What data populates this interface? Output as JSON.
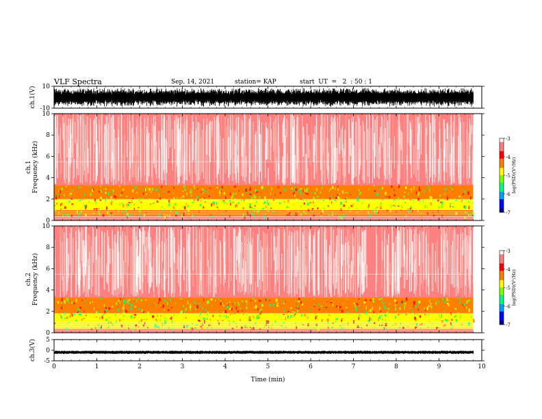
{
  "header": {
    "title": "VLF Spectra",
    "date": "Sep. 14, 2021",
    "station": "station= KAP",
    "start": "start  UT  =   2  : 50 : 1"
  },
  "chart_data": [
    {
      "type": "line",
      "panel": "ch1-waveform",
      "ylabel": "ch.1(V)",
      "ylim": [
        -10,
        10
      ],
      "yticks": [
        10,
        -10
      ],
      "xlim": [
        0,
        10
      ],
      "data_extent_min": 9.8,
      "description": "dense signal mostly spanning -8 to 8 V"
    },
    {
      "type": "heatmap",
      "panel": "ch1-spectrogram",
      "ylabel": "ch.1\nFrequency (kHz)",
      "ylim": [
        0,
        10
      ],
      "yticks": [
        0,
        2,
        4,
        6,
        8,
        10
      ],
      "xlim": [
        0,
        10
      ],
      "data_extent_min": 9.8,
      "bands": [
        {
          "f_min": 0.0,
          "f_max": 0.4,
          "level": -3.5
        },
        {
          "f_min": 0.4,
          "f_max": 1.0,
          "level": -4.2
        },
        {
          "f_min": 1.0,
          "f_max": 2.0,
          "level": -4.7
        },
        {
          "f_min": 2.0,
          "f_max": 3.3,
          "level": -4.4
        },
        {
          "f_min": 3.3,
          "f_max": 10.0,
          "level": -3.6
        }
      ],
      "colorbar": {
        "label": "log(PSD)(V²/Hz)",
        "range": [
          -7,
          -3
        ],
        "ticks": [
          -3,
          -4,
          -5,
          -6,
          -7
        ]
      }
    },
    {
      "type": "heatmap",
      "panel": "ch2-spectrogram",
      "ylabel": "ch.2\nFrequency (kHz)",
      "ylim": [
        0,
        10
      ],
      "yticks": [
        0,
        2,
        4,
        6,
        8,
        10
      ],
      "xlim": [
        0,
        10
      ],
      "data_extent_min": 9.8,
      "bands": [
        {
          "f_min": 0.0,
          "f_max": 0.4,
          "level": -3.5
        },
        {
          "f_min": 0.4,
          "f_max": 1.8,
          "level": -4.9
        },
        {
          "f_min": 1.8,
          "f_max": 3.3,
          "level": -4.3
        },
        {
          "f_min": 3.3,
          "f_max": 10.0,
          "level": -3.6
        }
      ],
      "colorbar": {
        "label": "log(PSD)(V²/Hz)",
        "range": [
          -7,
          -3
        ],
        "ticks": [
          -3,
          -4,
          -5,
          -6,
          -7
        ]
      }
    },
    {
      "type": "line",
      "panel": "ch3-waveform",
      "ylabel": "ch.3(V)",
      "ylim": [
        -5,
        5
      ],
      "yticks": [
        5,
        0,
        -5
      ],
      "xlim": [
        0,
        10
      ],
      "data_extent_min": 9.8,
      "description": "narrow band around -1 V"
    }
  ],
  "xaxis": {
    "label": "Time (min)",
    "ticks": [
      0,
      1,
      2,
      3,
      4,
      5,
      6,
      7,
      8,
      9,
      10
    ]
  },
  "colors": {
    "scale": [
      "#000080",
      "#0000ff",
      "#00a0ff",
      "#00ff80",
      "#80ff00",
      "#ffff00",
      "#ff8000",
      "#ff0000",
      "#ff8080",
      "#ffffff"
    ]
  }
}
